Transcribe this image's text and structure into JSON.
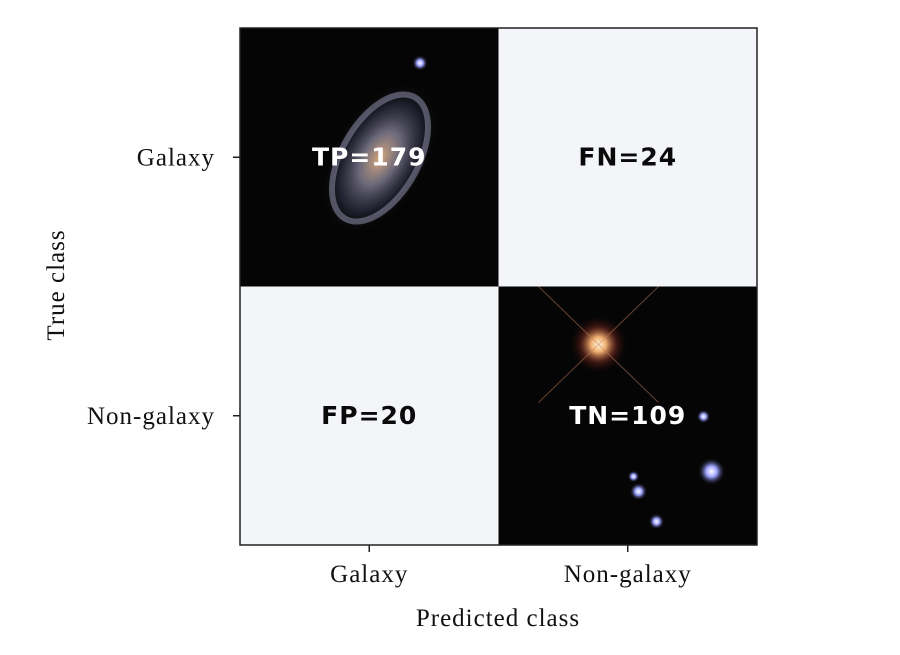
{
  "chart_data": {
    "type": "confusion_matrix",
    "xlabel": "Predicted class",
    "ylabel": "True class",
    "x_categories": [
      "Galaxy",
      "Non-galaxy"
    ],
    "y_categories": [
      "Galaxy",
      "Non-galaxy"
    ],
    "values": [
      [
        179,
        24
      ],
      [
        20,
        109
      ]
    ],
    "value_labels": [
      [
        "TP=179",
        "FN=24"
      ],
      [
        "FP=20",
        "TN=109"
      ]
    ]
  }
}
